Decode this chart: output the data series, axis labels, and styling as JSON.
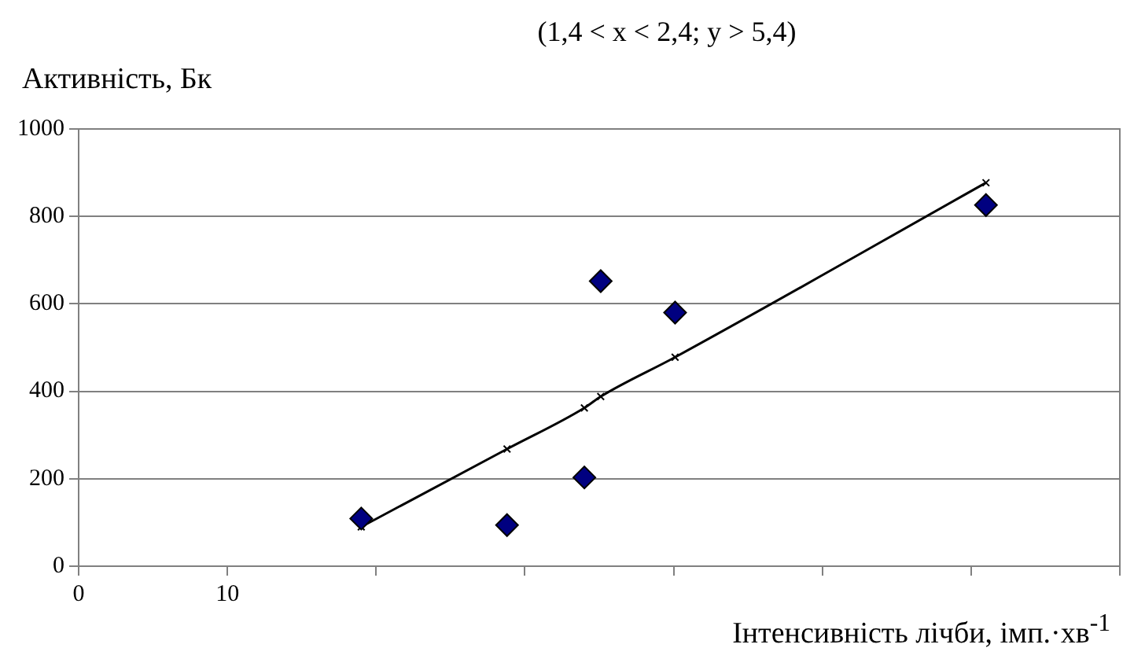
{
  "chart_data": {
    "type": "scatter",
    "title": "(1,4 < x < 2,4; y > 5,4)",
    "ylabel": "Активність, Бк",
    "xlabel": "Інтенсивність лічби, імп.·хв$^{-1}$",
    "xlim": [
      0,
      70
    ],
    "xticks": [
      0,
      10,
      {
        "value": 20,
        "label": null
      },
      {
        "value": 30,
        "label": null
      },
      {
        "value": 40,
        "label": null
      },
      {
        "value": 50,
        "label": null
      },
      {
        "value": 60,
        "label": null
      },
      {
        "value": 70,
        "label": null
      }
    ],
    "ylim": [
      0,
      1000
    ],
    "yticks": [
      0,
      200,
      400,
      600,
      800,
      1000
    ],
    "grid": "y",
    "legend": false,
    "series": [
      {
        "type": "line",
        "color": "#000000",
        "marker": "cross",
        "x": [
          19.0,
          28.8,
          34.0,
          35.1,
          40.1,
          61.0
        ],
        "values": [
          90,
          268,
          362,
          388,
          478,
          877
        ]
      },
      {
        "color": "#000080",
        "marker": "diamond",
        "x": [
          19.0,
          28.8,
          34.0,
          35.1,
          40.1,
          61.0
        ],
        "values": [
          109,
          94,
          203,
          652,
          580,
          826
        ]
      }
    ]
  }
}
